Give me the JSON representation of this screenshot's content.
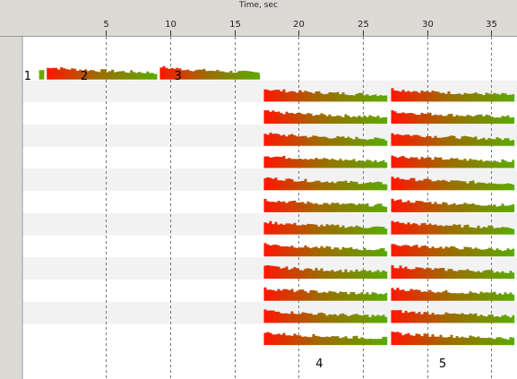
{
  "chart_data": {
    "type": "timeline",
    "title": "",
    "xlabel": "Time, sec",
    "ylabel": "",
    "xlim": [
      -1.5,
      37
    ],
    "x_ticks": [
      5,
      10,
      15,
      20,
      25,
      30,
      35
    ],
    "grid": true,
    "rows": 13,
    "bar_colors": {
      "start": "#ff1500",
      "mid": "#a06a00",
      "end": "#5aaa00"
    },
    "annotations": [
      {
        "text": "1",
        "x": -1.1,
        "row": 1
      },
      {
        "text": "2",
        "x": 3.3,
        "row": 1
      },
      {
        "text": "3",
        "x": 10.6,
        "row": 1
      },
      {
        "text": "4",
        "x": 21.6,
        "row": 14
      },
      {
        "text": "5",
        "x": 31.2,
        "row": 14
      }
    ],
    "segments": [
      {
        "row": 0,
        "start": -0.2,
        "end": 0.2
      },
      {
        "row": 0,
        "start": 0.4,
        "end": 9.0
      },
      {
        "row": 0,
        "start": 9.2,
        "end": 17.0
      },
      {
        "row": 1,
        "start": 17.3,
        "end": 26.9
      },
      {
        "row": 1,
        "start": 27.2,
        "end": 36.8
      },
      {
        "row": 2,
        "start": 17.3,
        "end": 26.9
      },
      {
        "row": 2,
        "start": 27.2,
        "end": 36.8
      },
      {
        "row": 3,
        "start": 17.3,
        "end": 26.9
      },
      {
        "row": 3,
        "start": 27.2,
        "end": 36.8
      },
      {
        "row": 4,
        "start": 17.3,
        "end": 26.9
      },
      {
        "row": 4,
        "start": 27.2,
        "end": 36.8
      },
      {
        "row": 5,
        "start": 17.3,
        "end": 26.9
      },
      {
        "row": 5,
        "start": 27.2,
        "end": 36.8
      },
      {
        "row": 6,
        "start": 17.3,
        "end": 26.9
      },
      {
        "row": 6,
        "start": 27.2,
        "end": 36.8
      },
      {
        "row": 7,
        "start": 17.3,
        "end": 26.9
      },
      {
        "row": 7,
        "start": 27.2,
        "end": 36.8
      },
      {
        "row": 8,
        "start": 17.3,
        "end": 26.9
      },
      {
        "row": 8,
        "start": 27.2,
        "end": 36.8
      },
      {
        "row": 9,
        "start": 17.3,
        "end": 26.9
      },
      {
        "row": 9,
        "start": 27.2,
        "end": 36.8
      },
      {
        "row": 10,
        "start": 17.3,
        "end": 26.9
      },
      {
        "row": 10,
        "start": 27.2,
        "end": 36.8
      },
      {
        "row": 11,
        "start": 17.3,
        "end": 26.9
      },
      {
        "row": 11,
        "start": 27.2,
        "end": 36.8
      },
      {
        "row": 12,
        "start": 17.3,
        "end": 26.9
      },
      {
        "row": 12,
        "start": 27.2,
        "end": 36.8
      }
    ]
  }
}
